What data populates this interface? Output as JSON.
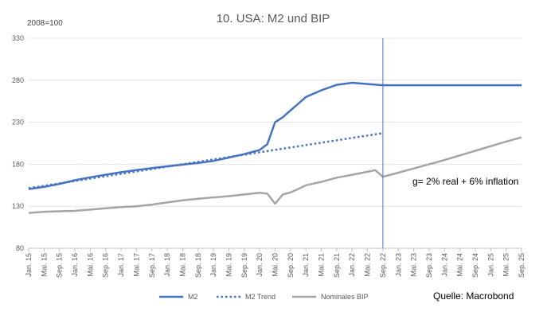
{
  "chart_data": {
    "type": "line",
    "title": "10. USA: M2 und BIP",
    "index_note": "2008=100",
    "source": "Quelle: Macrobond",
    "annotation": "g= 2% real + 6% inflation",
    "ylim": [
      80,
      330
    ],
    "yticks": [
      80,
      130,
      180,
      230,
      280,
      330
    ],
    "grid": "horizontal",
    "legend_position": "bottom",
    "vertical_marker_at": "Sep. 22",
    "categories": [
      "Jan. 15",
      "Mai. 15",
      "Sep. 15",
      "Jan. 16",
      "Mai. 16",
      "Sep. 16",
      "Jan. 17",
      "Mai. 17",
      "Sep. 17",
      "Jan. 18",
      "Mai. 18",
      "Sep. 18",
      "Jan. 19",
      "Mai. 19",
      "Sep. 19",
      "Jan. 20",
      "Mai. 20",
      "Sep. 20",
      "Jan. 21",
      "Mai. 21",
      "Sep. 21",
      "Jan. 22",
      "Mai. 22",
      "Sep. 22",
      "Jan. 23",
      "Mai. 23",
      "Sep. 23",
      "Jan. 24",
      "Mai. 24",
      "Sep. 24",
      "Jan. 25",
      "Mai. 25",
      "Sep. 25"
    ],
    "series": [
      {
        "name": "M2",
        "color": "#4472c4",
        "style": "solid",
        "x": [
          "Jan. 15",
          "Mai. 15",
          "Sep. 15",
          "Jan. 16",
          "Mai. 16",
          "Sep. 16",
          "Jan. 17",
          "Mai. 17",
          "Sep. 17",
          "Jan. 18",
          "Mai. 18",
          "Sep. 18",
          "Jan. 19",
          "Mai. 19",
          "Sep. 19",
          "Jan. 20",
          "Mar. 20",
          "Mai. 20",
          "Jul. 20",
          "Sep. 20",
          "Nov. 20",
          "Jan. 21",
          "Mai. 21",
          "Sep. 21",
          "Jan. 22",
          "Mai. 22",
          "Sep. 22",
          "Jan. 23",
          "Mai. 23",
          "Sep. 23",
          "Jan. 24",
          "Mai. 24",
          "Sep. 24",
          "Jan. 25",
          "Mai. 25",
          "Sep. 25"
        ],
        "values": [
          150.5,
          153,
          156.5,
          161,
          164.5,
          167.5,
          170.5,
          173,
          175.5,
          177.5,
          179.5,
          181.5,
          184,
          188,
          192,
          197,
          204,
          230,
          236,
          244,
          252,
          260,
          268,
          274.5,
          277,
          275.5,
          274,
          274,
          274,
          274,
          274,
          274,
          274,
          274,
          274,
          274
        ]
      },
      {
        "name": "M2 Trend",
        "color": "#4472c4",
        "style": "dotted",
        "x": [
          "Jan. 15",
          "Sep. 22"
        ],
        "values": [
          151.5,
          217
        ]
      },
      {
        "name": "Nominales BIP",
        "color": "#a5a5a5",
        "style": "solid",
        "x": [
          "Jan. 15",
          "Mai. 15",
          "Sep. 15",
          "Jan. 16",
          "Mai. 16",
          "Sep. 16",
          "Jan. 17",
          "Mai. 17",
          "Sep. 17",
          "Jan. 18",
          "Mai. 18",
          "Sep. 18",
          "Jan. 19",
          "Mai. 19",
          "Sep. 19",
          "Jan. 20",
          "Mar. 20",
          "Mai. 20",
          "Jul. 20",
          "Sep. 20",
          "Nov. 20",
          "Jan. 21",
          "Mai. 21",
          "Sep. 21",
          "Jan. 22",
          "Mai. 22",
          "Jul. 22",
          "Sep. 22",
          "Jan. 23",
          "Mai. 23",
          "Sep. 23",
          "Jan. 24",
          "Mai. 24",
          "Sep. 24",
          "Jan. 25",
          "Mai. 25",
          "Sep. 25"
        ],
        "values": [
          122,
          123.5,
          124,
          124.5,
          126,
          127.5,
          129,
          130,
          132,
          134.5,
          137,
          139,
          140.5,
          142,
          144,
          146,
          145,
          133,
          144,
          146.5,
          150.5,
          155,
          159,
          164,
          167.5,
          171,
          173,
          165,
          170,
          175,
          180,
          185,
          190.5,
          196,
          201.5,
          207,
          212
        ]
      }
    ]
  }
}
